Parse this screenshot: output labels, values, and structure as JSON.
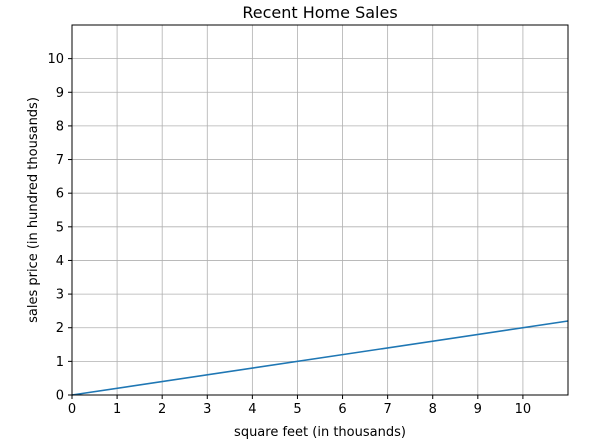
{
  "chart_data": {
    "type": "line",
    "title": "Recent Home Sales",
    "xlabel": "square feet (in thousands)",
    "ylabel": "sales price (in hundred thousands)",
    "xlim": [
      0,
      11
    ],
    "ylim": [
      0,
      11
    ],
    "xticks": [
      "0",
      "1",
      "2",
      "3",
      "4",
      "5",
      "6",
      "7",
      "8",
      "9",
      "10"
    ],
    "yticks": [
      "0",
      "1",
      "2",
      "3",
      "4",
      "5",
      "6",
      "7",
      "8",
      "9",
      "10"
    ],
    "grid": true,
    "series": [
      {
        "x": [
          0,
          11
        ],
        "y": [
          0,
          2.2
        ],
        "color": "#1f77b4"
      }
    ]
  }
}
